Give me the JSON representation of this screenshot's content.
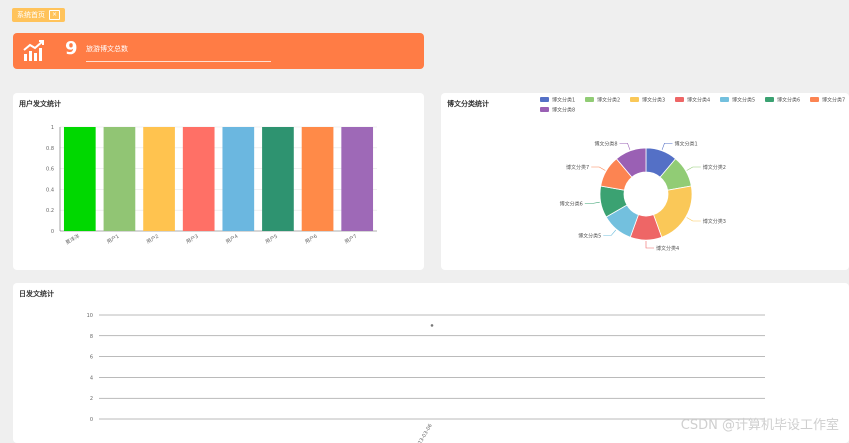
{
  "header": {
    "badge": "系统首页"
  },
  "kpi": {
    "value": "9",
    "label": "旅游博文总数",
    "icon": "trend-chart-icon"
  },
  "charts": {
    "bar_title": "用户发文统计",
    "pie_title": "博文分类统计",
    "line_title": "日发文统计"
  },
  "watermark": "CSDN @计算机毕设工作室",
  "colors": {
    "kpi": "#ff7c45",
    "badge": "#ffc35b"
  },
  "chart_data": [
    {
      "type": "bar",
      "title": "用户发文统计",
      "categories": [
        "夏洋洋",
        "用户1",
        "用户2",
        "用户3",
        "用户4",
        "用户5",
        "用户6",
        "用户7"
      ],
      "values": [
        1,
        1,
        1,
        1,
        1,
        1,
        1,
        1
      ],
      "ylim": [
        0,
        1
      ],
      "yticks": [
        0,
        0.2,
        0.4,
        0.6,
        0.8,
        1
      ],
      "colors": [
        "#00d800",
        "#91c574",
        "#ffc34f",
        "#ff7066",
        "#6bb7e0",
        "#2e9370",
        "#ff8a48",
        "#9e69b7"
      ]
    },
    {
      "type": "pie",
      "title": "博文分类统计",
      "labels": [
        "博文分类1",
        "博文分类2",
        "博文分类3",
        "博文分类4",
        "博文分类5",
        "博文分类6",
        "博文分类7",
        "博文分类8"
      ],
      "values": [
        1,
        1,
        2,
        1,
        1,
        1,
        1,
        1
      ],
      "colors": [
        "#5470c6",
        "#91cc75",
        "#fac858",
        "#ee6666",
        "#73c0de",
        "#3ba272",
        "#fc8452",
        "#9a60b4"
      ],
      "legend": "top-right"
    },
    {
      "type": "scatter",
      "title": "日发文统计",
      "x": [
        "2023-03-06"
      ],
      "y": [
        9
      ],
      "ylim": [
        0,
        10
      ],
      "yticks": [
        0,
        2,
        4,
        6,
        8,
        10
      ]
    }
  ]
}
